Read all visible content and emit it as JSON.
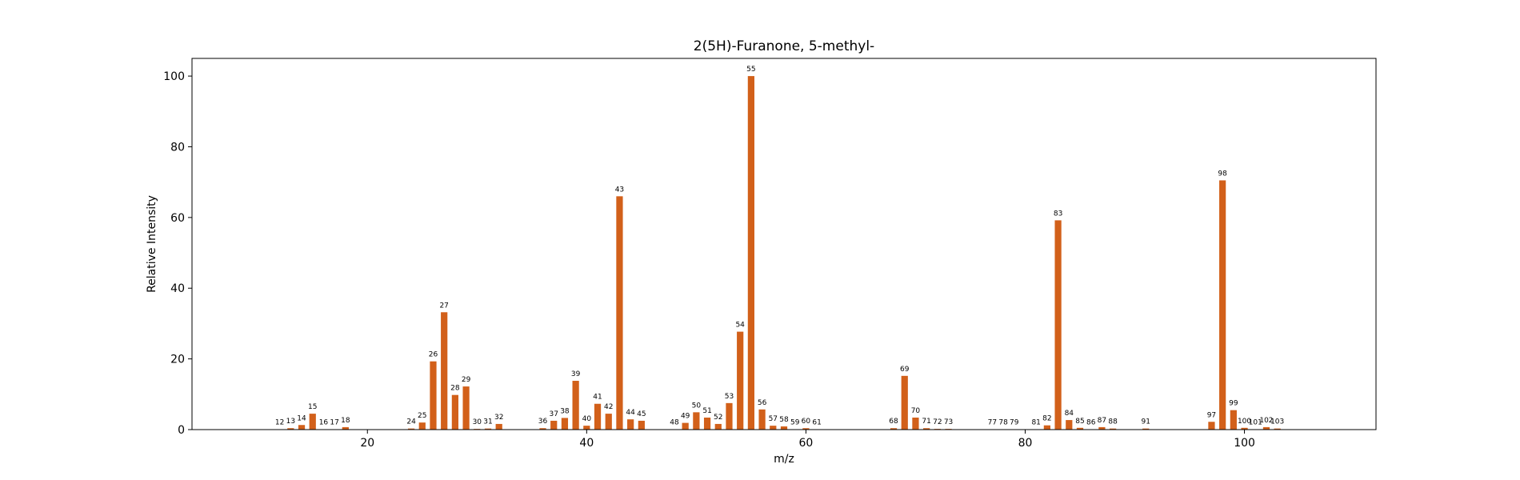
{
  "chart_data": {
    "type": "bar",
    "title": "2(5H)-Furanone, 5-methyl-",
    "xlabel": "m/z",
    "ylabel": "Relative Intensity",
    "xlim": [
      4,
      112
    ],
    "ylim": [
      0,
      105
    ],
    "xticks": [
      20,
      40,
      60,
      80,
      100
    ],
    "yticks": [
      0,
      20,
      40,
      60,
      80,
      100
    ],
    "bar_color": "#d2601a",
    "grid": false,
    "legend": "none",
    "x": [
      12,
      13,
      14,
      15,
      16,
      17,
      18,
      24,
      25,
      26,
      27,
      28,
      29,
      30,
      31,
      32,
      36,
      37,
      38,
      39,
      40,
      41,
      42,
      43,
      44,
      45,
      48,
      49,
      50,
      51,
      52,
      53,
      54,
      55,
      56,
      57,
      58,
      59,
      60,
      61,
      68,
      69,
      70,
      71,
      72,
      73,
      77,
      78,
      79,
      81,
      82,
      83,
      84,
      85,
      86,
      87,
      88,
      91,
      97,
      98,
      99,
      100,
      101,
      102,
      103
    ],
    "values": [
      0.1,
      0.4,
      1.3,
      4.5,
      0.1,
      0.1,
      0.7,
      0.3,
      2.0,
      19.3,
      33.2,
      9.8,
      12.2,
      0.2,
      0.3,
      1.6,
      0.4,
      2.5,
      3.3,
      13.8,
      1.1,
      7.3,
      4.5,
      66.0,
      2.9,
      2.5,
      0.1,
      1.9,
      4.9,
      3.4,
      1.6,
      7.5,
      27.7,
      100.0,
      5.7,
      1.1,
      0.9,
      0.1,
      0.4,
      0.1,
      0.4,
      15.2,
      3.4,
      0.4,
      0.2,
      0.2,
      0.1,
      0.1,
      0.1,
      0.1,
      1.2,
      59.2,
      2.7,
      0.5,
      0.1,
      0.7,
      0.3,
      0.3,
      2.2,
      70.5,
      5.5,
      0.5,
      0.1,
      0.7,
      0.3
    ],
    "labels": [
      "12",
      "13",
      "14",
      "15",
      "16",
      "17",
      "18",
      "24",
      "25",
      "26",
      "27",
      "28",
      "29",
      "30",
      "31",
      "32",
      "36",
      "37",
      "38",
      "39",
      "40",
      "41",
      "42",
      "43",
      "44",
      "45",
      "48",
      "49",
      "50",
      "51",
      "52",
      "53",
      "54",
      "55",
      "56",
      "57",
      "58",
      "59",
      "60",
      "61",
      "68",
      "69",
      "70",
      "71",
      "72",
      "73",
      "77",
      "78",
      "79",
      "81",
      "82",
      "83",
      "84",
      "85",
      "86",
      "87",
      "88",
      "91",
      "97",
      "98",
      "99",
      "100",
      "101",
      "102",
      "103"
    ]
  }
}
